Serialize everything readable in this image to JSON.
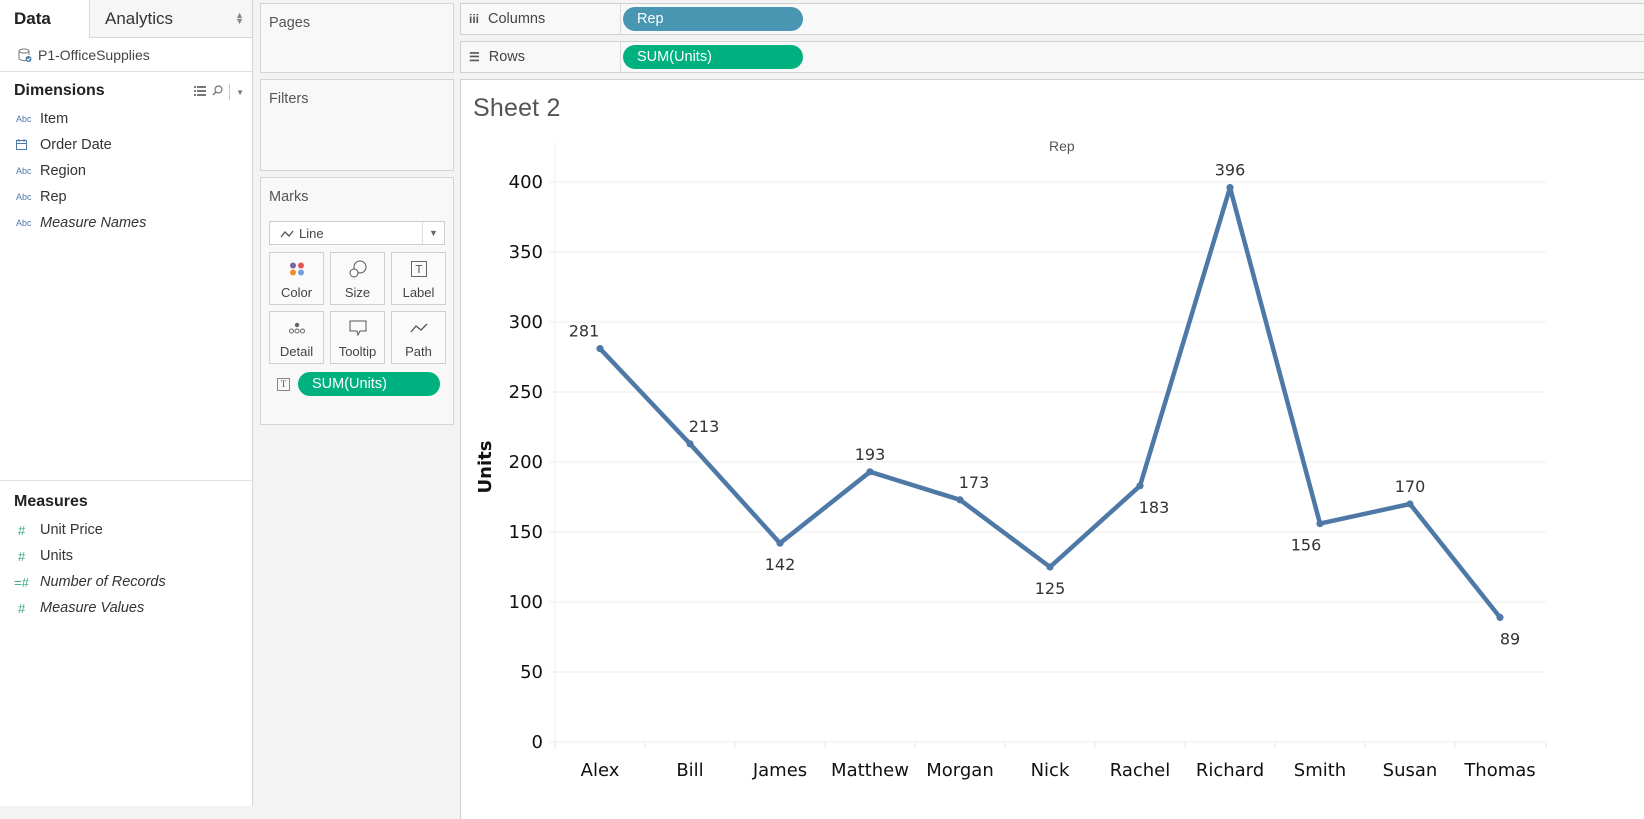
{
  "left_pane": {
    "tabs": [
      {
        "label": "Data",
        "active": true
      },
      {
        "label": "Analytics",
        "active": false
      }
    ],
    "datasource": "P1-OfficeSupplies",
    "dimensions": {
      "title": "Dimensions",
      "items": [
        {
          "label": "Item",
          "type_icon": "Abc",
          "italic": false
        },
        {
          "label": "Order Date",
          "type_icon": "calendar-icon",
          "italic": false
        },
        {
          "label": "Region",
          "type_icon": "Abc",
          "italic": false
        },
        {
          "label": "Rep",
          "type_icon": "Abc",
          "italic": false
        },
        {
          "label": "Measure Names",
          "type_icon": "Abc",
          "italic": true
        }
      ]
    },
    "measures": {
      "title": "Measures",
      "items": [
        {
          "label": "Unit Price",
          "type_icon": "#",
          "italic": false
        },
        {
          "label": "Units",
          "type_icon": "#",
          "italic": false
        },
        {
          "label": "Number of Records",
          "type_icon": "=#",
          "italic": true
        },
        {
          "label": "Measure Values",
          "type_icon": "#",
          "italic": true
        }
      ]
    }
  },
  "cards": {
    "pages": "Pages",
    "filters": "Filters",
    "marks": {
      "title": "Marks",
      "mark_type": "Line",
      "buttons": [
        {
          "label": "Color"
        },
        {
          "label": "Size"
        },
        {
          "label": "Label"
        },
        {
          "label": "Detail"
        },
        {
          "label": "Tooltip"
        },
        {
          "label": "Path"
        }
      ],
      "label_pill": "SUM(Units)"
    }
  },
  "shelves": {
    "columns": {
      "label": "Columns",
      "pill": "Rep",
      "pill_color": "#4996b2"
    },
    "rows": {
      "label": "Rows",
      "pill": "SUM(Units)",
      "pill_color": "#00b180"
    }
  },
  "view": {
    "sheet_title": "Sheet 2",
    "column_header": "Rep"
  },
  "chart_data": {
    "type": "line",
    "title": "Sheet 2",
    "categories": [
      "Alex",
      "Bill",
      "James",
      "Matthew",
      "Morgan",
      "Nick",
      "Rachel",
      "Richard",
      "Smith",
      "Susan",
      "Thomas"
    ],
    "values": [
      281,
      213,
      142,
      193,
      173,
      125,
      183,
      396,
      156,
      170,
      89
    ],
    "label_positions": [
      "above",
      "above",
      "below",
      "above",
      "above",
      "below",
      "below",
      "above",
      "below",
      "above",
      "below"
    ],
    "xlabel": "Rep",
    "ylabel": "Units",
    "ylim": [
      0,
      400
    ],
    "yticks": [
      0,
      50,
      100,
      150,
      200,
      250,
      300,
      350,
      400
    ],
    "grid": true,
    "line_color": "#4e79a7",
    "legend": null
  }
}
